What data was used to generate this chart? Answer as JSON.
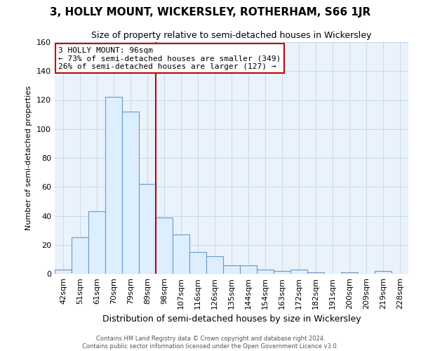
{
  "title": "3, HOLLY MOUNT, WICKERSLEY, ROTHERHAM, S66 1JR",
  "subtitle": "Size of property relative to semi-detached houses in Wickersley",
  "xlabel": "Distribution of semi-detached houses by size in Wickersley",
  "ylabel": "Number of semi-detached properties",
  "categories": [
    "42sqm",
    "51sqm",
    "61sqm",
    "70sqm",
    "79sqm",
    "89sqm",
    "98sqm",
    "107sqm",
    "116sqm",
    "126sqm",
    "135sqm",
    "144sqm",
    "154sqm",
    "163sqm",
    "172sqm",
    "182sqm",
    "191sqm",
    "200sqm",
    "209sqm",
    "219sqm",
    "228sqm"
  ],
  "values": [
    3,
    25,
    43,
    122,
    112,
    62,
    39,
    27,
    15,
    12,
    6,
    6,
    3,
    2,
    3,
    1,
    0,
    1,
    0,
    2,
    0
  ],
  "bar_color": "#ddeeff",
  "bar_edge_color": "#6699cc",
  "marker_line_index": 6,
  "annotation_text_line1": "3 HOLLY MOUNT: 96sqm",
  "annotation_text_line2": "← 73% of semi-detached houses are smaller (349)",
  "annotation_text_line3": "26% of semi-detached houses are larger (127) →",
  "annotation_box_color": "#ffffff",
  "annotation_box_edge_color": "#cc0000",
  "marker_line_color": "#cc0000",
  "grid_color": "#c8d8ea",
  "background_color": "#eaf3fb",
  "ylim": [
    0,
    160
  ],
  "yticks": [
    0,
    20,
    40,
    60,
    80,
    100,
    120,
    140,
    160
  ],
  "title_fontsize": 11,
  "subtitle_fontsize": 9,
  "xlabel_fontsize": 9,
  "ylabel_fontsize": 8,
  "tick_fontsize": 8,
  "annot_fontsize": 8,
  "footer_line1": "Contains HM Land Registry data © Crown copyright and database right 2024.",
  "footer_line2": "Contains public sector information licensed under the Open Government Licence v3.0."
}
